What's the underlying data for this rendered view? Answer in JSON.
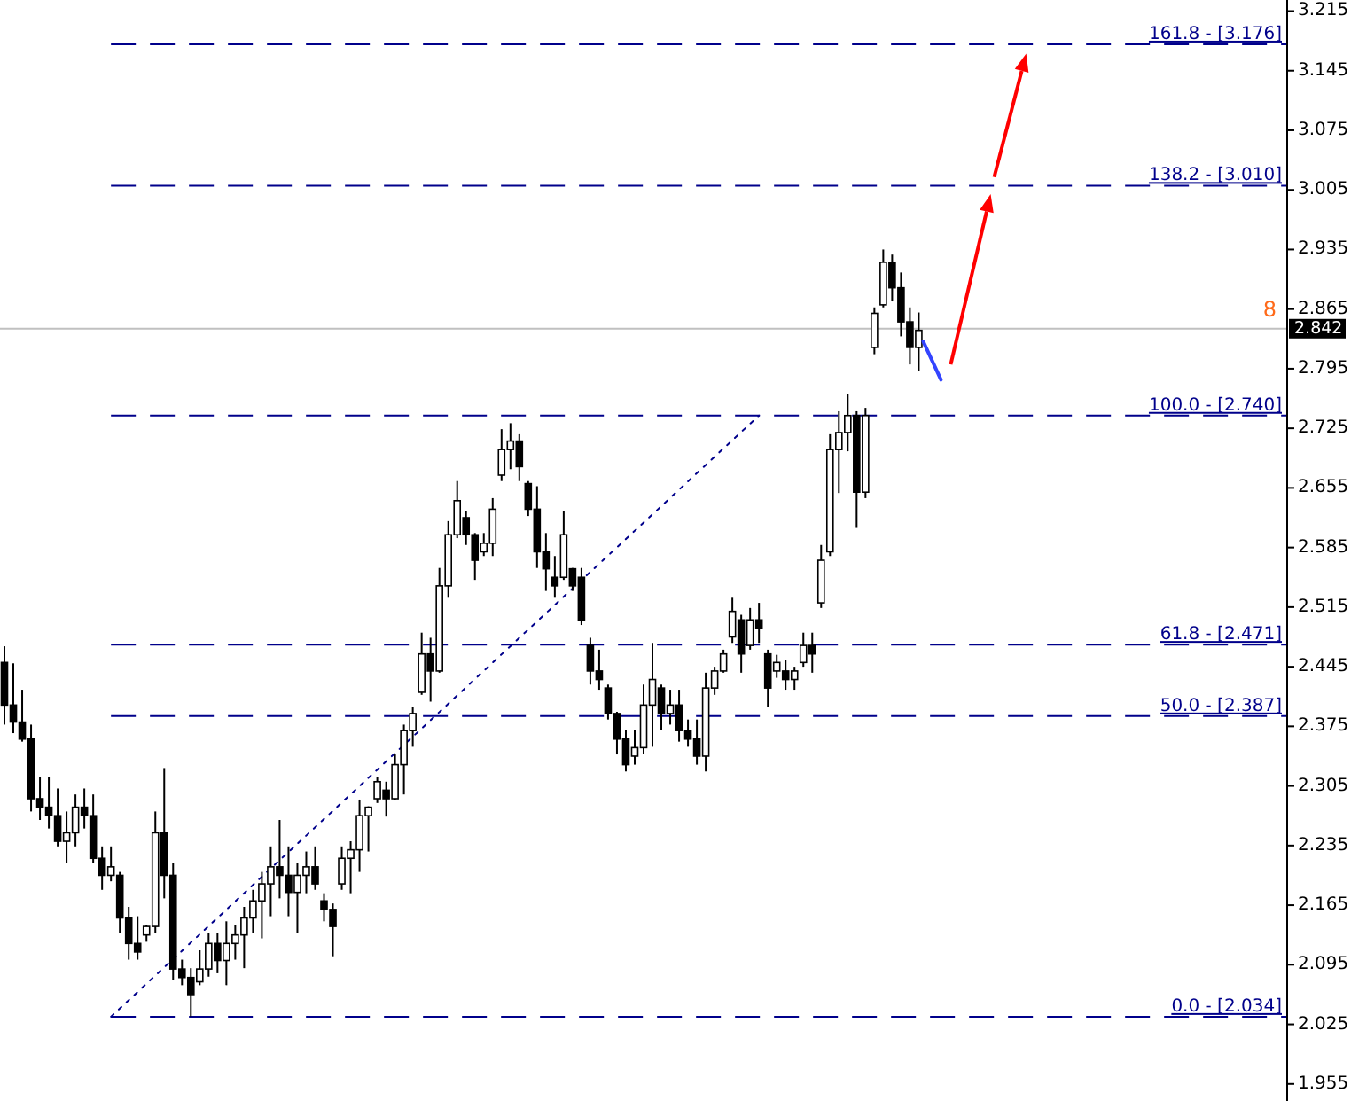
{
  "chart_data": {
    "type": "candlestick",
    "color": "#000000",
    "categories": [
      null,
      null,
      null,
      null,
      null,
      null,
      null,
      null,
      null,
      null,
      null,
      null,
      null,
      null,
      null,
      null,
      null,
      null,
      null,
      null,
      null,
      null,
      null,
      null,
      null,
      null,
      null,
      null,
      null,
      null,
      null,
      null,
      null,
      null,
      null,
      null,
      null,
      null,
      null,
      null,
      null,
      null,
      null,
      null,
      null,
      null,
      null,
      null,
      null,
      null,
      null,
      null,
      null,
      null,
      null,
      null,
      null,
      null,
      null,
      null,
      null,
      null,
      null,
      null,
      null,
      null,
      null,
      null,
      null,
      null,
      null,
      null,
      null,
      null,
      null,
      null,
      null,
      null,
      null,
      null,
      null,
      null,
      null,
      null,
      null,
      null,
      null,
      null,
      null,
      null,
      null,
      null,
      null,
      null,
      null,
      null,
      null,
      null,
      null,
      null,
      null,
      null,
      null,
      null,
      null,
      null,
      null,
      null,
      null,
      null,
      null,
      null,
      null,
      null,
      null,
      null,
      null,
      null,
      null,
      null,
      null,
      null,
      null,
      null,
      null,
      null,
      null,
      null,
      null,
      null,
      null,
      null,
      null,
      null,
      null,
      null,
      null,
      null,
      null,
      null,
      null,
      null,
      null,
      null,
      null
    ],
    "ohlc": [
      [
        2.45,
        2.469,
        2.377,
        2.4
      ],
      [
        2.4,
        2.449,
        2.367,
        2.38
      ],
      [
        2.38,
        2.418,
        2.357,
        2.36
      ],
      [
        2.36,
        2.377,
        2.275,
        2.29
      ],
      [
        2.29,
        2.316,
        2.265,
        2.28
      ],
      [
        2.28,
        2.316,
        2.255,
        2.27
      ],
      [
        2.27,
        2.302,
        2.234,
        2.24
      ],
      [
        2.24,
        2.275,
        2.214,
        2.25
      ],
      [
        2.25,
        2.295,
        2.234,
        2.28
      ],
      [
        2.28,
        2.302,
        2.255,
        2.27
      ],
      [
        2.27,
        2.295,
        2.214,
        2.22
      ],
      [
        2.22,
        2.234,
        2.183,
        2.2
      ],
      [
        2.2,
        2.234,
        2.193,
        2.21
      ],
      [
        2.2,
        2.204,
        2.132,
        2.15
      ],
      [
        2.15,
        2.163,
        2.101,
        2.12
      ],
      [
        2.12,
        2.152,
        2.101,
        2.11
      ],
      [
        2.13,
        2.142,
        2.122,
        2.14
      ],
      [
        2.14,
        2.275,
        2.132,
        2.25
      ],
      [
        2.25,
        2.326,
        2.173,
        2.2
      ],
      [
        2.2,
        2.214,
        2.077,
        2.09
      ],
      [
        2.09,
        2.101,
        2.071,
        2.08
      ],
      [
        2.08,
        2.091,
        2.034,
        2.06
      ],
      [
        2.075,
        2.112,
        2.071,
        2.09
      ],
      [
        2.09,
        2.132,
        2.081,
        2.12
      ],
      [
        2.12,
        2.132,
        2.085,
        2.1
      ],
      [
        2.1,
        2.146,
        2.071,
        2.12
      ],
      [
        2.12,
        2.142,
        2.101,
        2.13
      ],
      [
        2.13,
        2.163,
        2.091,
        2.15
      ],
      [
        2.15,
        2.183,
        2.132,
        2.17
      ],
      [
        2.17,
        2.204,
        2.126,
        2.19
      ],
      [
        2.19,
        2.234,
        2.152,
        2.21
      ],
      [
        2.21,
        2.265,
        2.173,
        2.2
      ],
      [
        2.2,
        2.234,
        2.152,
        2.18
      ],
      [
        2.18,
        2.214,
        2.132,
        2.2
      ],
      [
        2.2,
        2.228,
        2.179,
        2.21
      ],
      [
        2.21,
        2.234,
        2.183,
        2.19
      ],
      [
        2.17,
        2.179,
        2.146,
        2.16
      ],
      [
        2.16,
        2.167,
        2.105,
        2.14
      ],
      [
        2.19,
        2.234,
        2.183,
        2.22
      ],
      [
        2.22,
        2.24,
        2.179,
        2.23
      ],
      [
        2.23,
        2.289,
        2.204,
        2.27
      ],
      [
        2.27,
        2.281,
        2.228,
        2.28
      ],
      [
        2.29,
        2.316,
        2.285,
        2.31
      ],
      [
        2.3,
        2.31,
        2.269,
        2.29
      ],
      [
        2.29,
        2.342,
        2.289,
        2.33
      ],
      [
        2.33,
        2.377,
        2.295,
        2.37
      ],
      [
        2.37,
        2.398,
        2.351,
        2.39
      ],
      [
        2.415,
        2.485,
        2.412,
        2.46
      ],
      [
        2.46,
        2.479,
        2.404,
        2.44
      ],
      [
        2.44,
        2.561,
        2.438,
        2.54
      ],
      [
        2.54,
        2.616,
        2.526,
        2.6
      ],
      [
        2.6,
        2.663,
        2.596,
        2.64
      ],
      [
        2.62,
        2.628,
        2.588,
        2.6
      ],
      [
        2.6,
        2.602,
        2.547,
        2.57
      ],
      [
        2.58,
        2.602,
        2.575,
        2.59
      ],
      [
        2.59,
        2.643,
        2.575,
        2.63
      ],
      [
        2.67,
        2.724,
        2.663,
        2.7
      ],
      [
        2.7,
        2.731,
        2.677,
        2.71
      ],
      [
        2.71,
        2.718,
        2.663,
        2.68
      ],
      [
        2.66,
        2.663,
        2.622,
        2.63
      ],
      [
        2.63,
        2.657,
        2.561,
        2.58
      ],
      [
        2.58,
        2.602,
        2.534,
        2.56
      ],
      [
        2.55,
        2.575,
        2.526,
        2.54
      ],
      [
        2.55,
        2.628,
        2.547,
        2.6
      ],
      [
        2.56,
        2.561,
        2.534,
        2.54
      ],
      [
        2.55,
        2.561,
        2.494,
        2.5
      ],
      [
        2.47,
        2.479,
        2.424,
        2.44
      ],
      [
        2.44,
        2.465,
        2.418,
        2.43
      ],
      [
        2.42,
        2.424,
        2.383,
        2.39
      ],
      [
        2.39,
        2.392,
        2.342,
        2.36
      ],
      [
        2.36,
        2.371,
        2.322,
        2.33
      ],
      [
        2.34,
        2.371,
        2.33,
        2.35
      ],
      [
        2.35,
        2.424,
        2.342,
        2.4
      ],
      [
        2.4,
        2.473,
        2.351,
        2.43
      ],
      [
        2.42,
        2.424,
        2.371,
        2.39
      ],
      [
        2.39,
        2.418,
        2.377,
        2.4
      ],
      [
        2.4,
        2.418,
        2.357,
        2.37
      ],
      [
        2.37,
        2.383,
        2.351,
        2.36
      ],
      [
        2.36,
        2.383,
        2.33,
        2.34
      ],
      [
        2.34,
        2.438,
        2.322,
        2.42
      ],
      [
        2.42,
        2.445,
        2.412,
        2.44
      ],
      [
        2.44,
        2.465,
        2.438,
        2.46
      ],
      [
        2.48,
        2.526,
        2.473,
        2.51
      ],
      [
        2.5,
        2.506,
        2.438,
        2.46
      ],
      [
        2.47,
        2.514,
        2.465,
        2.5
      ],
      [
        2.5,
        2.52,
        2.473,
        2.49
      ],
      [
        2.46,
        2.465,
        2.398,
        2.42
      ],
      [
        2.44,
        2.459,
        2.432,
        2.45
      ],
      [
        2.44,
        2.453,
        2.418,
        2.43
      ],
      [
        2.43,
        2.445,
        2.418,
        2.44
      ],
      [
        2.45,
        2.485,
        2.445,
        2.47
      ],
      [
        2.47,
        2.485,
        2.438,
        2.46
      ],
      [
        2.52,
        2.588,
        2.514,
        2.57
      ],
      [
        2.58,
        2.718,
        2.575,
        2.7
      ],
      [
        2.7,
        2.745,
        2.649,
        2.72
      ],
      [
        2.72,
        2.765,
        2.698,
        2.74
      ],
      [
        2.74,
        2.745,
        2.608,
        2.65
      ],
      [
        2.65,
        2.749,
        2.643,
        2.74
      ],
      [
        2.82,
        2.867,
        2.812,
        2.86
      ],
      [
        2.87,
        2.935,
        2.867,
        2.92
      ],
      [
        2.92,
        2.929,
        2.874,
        2.89
      ],
      [
        2.89,
        2.908,
        2.833,
        2.85
      ],
      [
        2.85,
        2.867,
        2.8,
        2.82
      ],
      [
        2.82,
        2.861,
        2.792,
        2.84
      ],
      null,
      null,
      null,
      null,
      null,
      null,
      null,
      null,
      null,
      null,
      null,
      null,
      null,
      null,
      null,
      null,
      null,
      null,
      null,
      null,
      null,
      null,
      null,
      null,
      null,
      null,
      null,
      null,
      null,
      null,
      null,
      null,
      null,
      null,
      null,
      null,
      null,
      null,
      null,
      null,
      null
    ],
    "series": [
      {
        "type": "line",
        "values": [
          null,
          null,
          null,
          null,
          null,
          null,
          null,
          null,
          null,
          null,
          null,
          null,
          2.034,
          null,
          null,
          null,
          null,
          null,
          null,
          null,
          null,
          null,
          null,
          null,
          null,
          null,
          null,
          null,
          null,
          null,
          null,
          null,
          null,
          null,
          null,
          null,
          null,
          null,
          null,
          null,
          null,
          null,
          null,
          null,
          null,
          null,
          null,
          null,
          null,
          null,
          null,
          null,
          null,
          null,
          null,
          null,
          null,
          null,
          null,
          null,
          null,
          null,
          null,
          null,
          null,
          null,
          null,
          null,
          null,
          null,
          null,
          null,
          null,
          null,
          null,
          null,
          null,
          null,
          null,
          null,
          null,
          null,
          null,
          null,
          null,
          2.74,
          null,
          null,
          null,
          null,
          null,
          null,
          null,
          null,
          null,
          null,
          null,
          null,
          null,
          null,
          null,
          null,
          null,
          null,
          null,
          null,
          null,
          null,
          null,
          null,
          null,
          null,
          null,
          null,
          null,
          null,
          null,
          null,
          null,
          null,
          null,
          null,
          null,
          null,
          null,
          null,
          null,
          null,
          null,
          null,
          null,
          null,
          null,
          null,
          null,
          null,
          null,
          null,
          null,
          null,
          null,
          null,
          null,
          null,
          null
        ],
        "color": "#00008b",
        "line_style": "dotted"
      }
    ],
    "ylim": [
      1.935,
      3.228
    ],
    "yticks": [
      3.215,
      3.145,
      3.075,
      3.005,
      2.935,
      2.865,
      2.795,
      2.725,
      2.655,
      2.585,
      2.515,
      2.445,
      2.375,
      2.305,
      2.235,
      2.165,
      2.095,
      2.025,
      1.955
    ],
    "tick_labels": "y",
    "ref_lines": [
      {
        "axis": "y",
        "value": 3.176,
        "label": "161.8 - [3.176]",
        "color": "#00008b",
        "line_style": "dashed"
      },
      {
        "axis": "y",
        "value": 3.01,
        "label": "138.2 - [3.010]",
        "color": "#00008b",
        "line_style": "dashed"
      },
      {
        "axis": "y",
        "value": 2.74,
        "label": "100.0 - [2.740]",
        "color": "#00008b",
        "line_style": "dashed"
      },
      {
        "axis": "y",
        "value": 2.471,
        "label": "61.8 - [2.471]",
        "color": "#00008b",
        "line_style": "dashed"
      },
      {
        "axis": "y",
        "value": 2.387,
        "label": "50.0 - [2.387]",
        "color": "#00008b",
        "line_style": "dashed"
      },
      {
        "axis": "y",
        "value": 2.034,
        "label": "0.0 - [2.034]",
        "color": "#00008b",
        "line_style": "dashed"
      },
      {
        "axis": "y",
        "value": 2.842,
        "label": "2.842",
        "color": "#c0c0c0",
        "line_style": "solid"
      }
    ],
    "annotations": [
      "8"
    ]
  }
}
